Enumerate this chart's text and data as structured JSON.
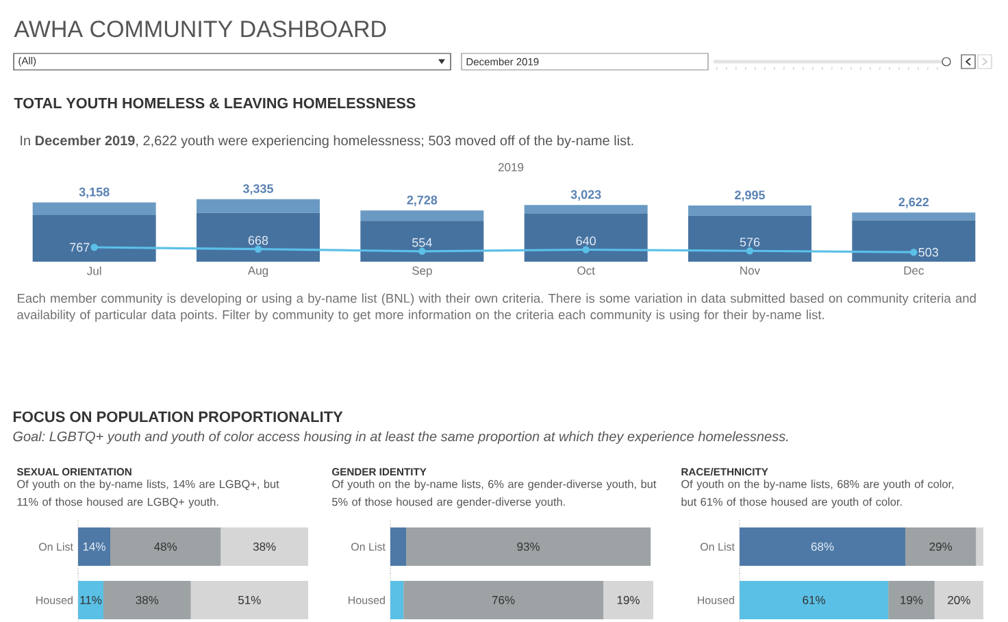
{
  "chart_data": [
    {
      "type": "other",
      "title": "AWHA COMMUNITY DASHBOARD",
      "annotations": [
        "(All)",
        "December 2019"
      ]
    },
    {
      "type": "bar",
      "stacked": true,
      "title": "TOTAL YOUTH HOMELESS & LEAVING HOMELESSNESS",
      "subtitle": "In **December 2019**, 2,622 youth were experiencing homelessness; 503 moved off of the by-name list.",
      "xlabel": "2019",
      "categories": [
        "Jul",
        "Aug",
        "Sep",
        "Oct",
        "Nov",
        "Dec"
      ],
      "series": [
        {
          "color": "#4672a0",
          "values": [
            2490,
            2600,
            2180,
            2560,
            2460,
            2210
          ]
        },
        {
          "color": "#6a9ac4",
          "values": [
            668,
            735,
            548,
            463,
            535,
            412
          ]
        },
        {
          "type": "line",
          "color": "#5bc0e8",
          "marker": "circle",
          "values": [
            767,
            668,
            554,
            640,
            576,
            503
          ],
          "value_labels": [
            "767",
            "668",
            "554",
            "640",
            "576",
            "503"
          ]
        }
      ],
      "totals": [
        "3,158",
        "3,335",
        "2,728",
        "3,023",
        "2,995",
        "2,622"
      ],
      "annotations": [
        "Each member community is developing or using a by-name list (BNL) with their own criteria. There is some variation in data submitted based on community criteria and availability of particular data points. Filter by community to get more information on the criteria each community is using for their by-name list."
      ]
    },
    {
      "type": "other",
      "title": "FOCUS ON POPULATION PROPORTIONALITY",
      "subtitle": "Goal: LGBTQ+ youth and youth of color access housing in at least the same proportion at which they experience homelessness."
    },
    {
      "type": "bar",
      "orientation": "horizontal",
      "stacked": true,
      "title": "SEXUAL ORIENTATION",
      "subtitle": "Of youth on the by-name lists, 14% are LGBQ+, but 11% of those housed are LGBQ+ youth.",
      "categories": [
        "On List",
        "Housed"
      ],
      "series": [
        {
          "colors": [
            "#4e79a7",
            "#5bc0e6"
          ],
          "values": [
            14,
            11
          ],
          "value_labels": [
            "14%",
            "11%"
          ]
        },
        {
          "color": "#9da2a4",
          "values": [
            48,
            38
          ],
          "value_labels": [
            "48%",
            "38%"
          ]
        },
        {
          "color": "#d6d6d6",
          "values": [
            38,
            51
          ],
          "value_labels": [
            "38%",
            "51%"
          ]
        }
      ]
    },
    {
      "type": "bar",
      "orientation": "horizontal",
      "stacked": true,
      "title": "GENDER IDENTITY",
      "subtitle": "Of youth on the by-name lists, 6% are gender-diverse youth, but 5% of those housed are gender-diverse youth.",
      "categories": [
        "On List",
        "Housed"
      ],
      "series": [
        {
          "colors": [
            "#4e79a7",
            "#5bc0e6"
          ],
          "values": [
            6,
            5
          ]
        },
        {
          "color": "#9da2a4",
          "values": [
            93,
            76
          ],
          "value_labels": [
            "93%",
            "76%"
          ]
        },
        {
          "color": "#d6d6d6",
          "values": [
            null,
            19
          ],
          "value_labels": [
            null,
            "19%"
          ]
        }
      ]
    },
    {
      "type": "bar",
      "orientation": "horizontal",
      "stacked": true,
      "title": "RACE/ETHNICITY",
      "subtitle": "Of youth on the by-name lists, 68% are youth of color, but 61% of those housed are youth of color.",
      "categories": [
        "On List",
        "Housed"
      ],
      "series": [
        {
          "colors": [
            "#4e79a7",
            "#5bc0e6"
          ],
          "values": [
            68,
            61
          ],
          "value_labels": [
            "68%",
            "61%"
          ]
        },
        {
          "color": "#9da2a4",
          "values": [
            29,
            19
          ],
          "value_labels": [
            "29%",
            "19%"
          ]
        },
        {
          "color": "#d6d6d6",
          "values": [
            3,
            20
          ],
          "value_labels": [
            null,
            "20%"
          ]
        }
      ]
    }
  ]
}
